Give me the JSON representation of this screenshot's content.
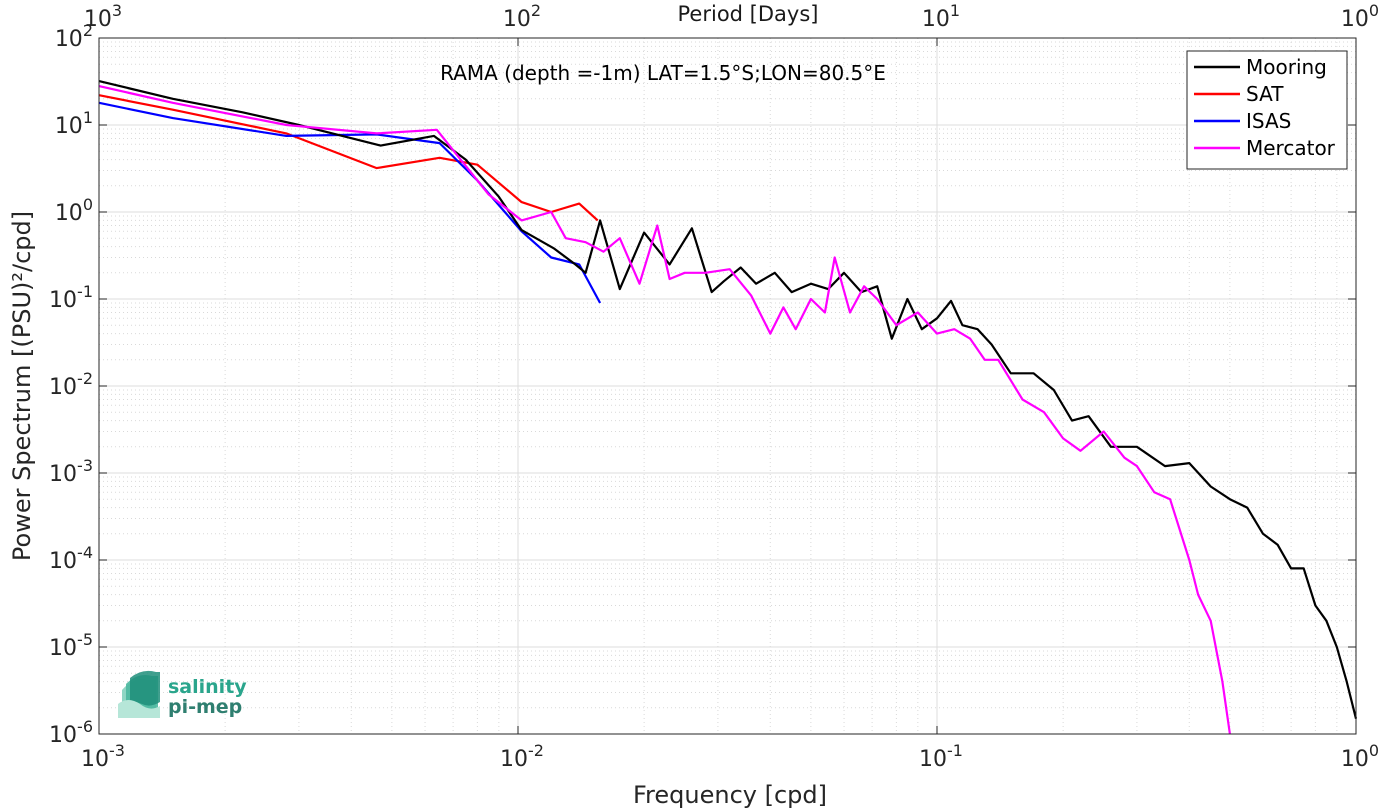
{
  "chart_data": {
    "type": "line",
    "annotation": "RAMA (depth =-1m) LAT=1.5°S;LON=80.5°E",
    "xlabel": "Frequency [cpd]",
    "ylabel": "Power Spectrum [(PSU)²/cpd]",
    "x2label": "Period [Days]",
    "xscale": "log",
    "yscale": "log",
    "xlim": [
      0.001,
      1
    ],
    "ylim": [
      1e-06,
      100
    ],
    "grid": true,
    "legend_position": "top-right",
    "xticks": [
      0.001,
      0.01,
      0.1,
      1
    ],
    "xtick_labels": [
      {
        "base": "10",
        "exp": "-3"
      },
      {
        "base": "10",
        "exp": "-2"
      },
      {
        "base": "10",
        "exp": "-1"
      },
      {
        "base": "10",
        "exp": "0"
      }
    ],
    "x2ticks": [
      1000,
      100,
      10,
      1
    ],
    "x2tick_labels": [
      {
        "base": "10",
        "exp": "3"
      },
      {
        "base": "10",
        "exp": "2"
      },
      {
        "base": "10",
        "exp": "1"
      },
      {
        "base": "10",
        "exp": "0"
      }
    ],
    "yticks": [
      1e-06,
      1e-05,
      0.0001,
      0.001,
      0.01,
      0.1,
      1,
      10,
      100
    ],
    "ytick_labels": [
      {
        "base": "10",
        "exp": "-6"
      },
      {
        "base": "10",
        "exp": "-5"
      },
      {
        "base": "10",
        "exp": "-4"
      },
      {
        "base": "10",
        "exp": "-3"
      },
      {
        "base": "10",
        "exp": "-2"
      },
      {
        "base": "10",
        "exp": "-1"
      },
      {
        "base": "10",
        "exp": "0"
      },
      {
        "base": "10",
        "exp": "1"
      },
      {
        "base": "10",
        "exp": "2"
      }
    ],
    "series": [
      {
        "name": "Mooring",
        "color": "#000000",
        "x": [
          0.001,
          0.0015,
          0.0022,
          0.003,
          0.0047,
          0.0063,
          0.0075,
          0.009,
          0.0102,
          0.0122,
          0.0137,
          0.0145,
          0.0157,
          0.0175,
          0.02,
          0.023,
          0.026,
          0.029,
          0.031,
          0.034,
          0.037,
          0.041,
          0.045,
          0.05,
          0.055,
          0.06,
          0.066,
          0.072,
          0.078,
          0.085,
          0.092,
          0.1,
          0.108,
          0.115,
          0.125,
          0.135,
          0.15,
          0.17,
          0.19,
          0.21,
          0.23,
          0.26,
          0.3,
          0.35,
          0.4,
          0.45,
          0.5,
          0.55,
          0.6,
          0.65,
          0.7,
          0.75,
          0.8,
          0.85,
          0.9,
          0.95,
          1.0
        ],
        "y": [
          32,
          20,
          14,
          10,
          5.8,
          7.5,
          4,
          1.5,
          0.62,
          0.38,
          0.25,
          0.2,
          0.8,
          0.13,
          0.58,
          0.25,
          0.65,
          0.12,
          0.16,
          0.23,
          0.15,
          0.2,
          0.12,
          0.15,
          0.13,
          0.2,
          0.12,
          0.14,
          0.035,
          0.1,
          0.045,
          0.06,
          0.095,
          0.05,
          0.045,
          0.03,
          0.014,
          0.014,
          0.009,
          0.004,
          0.0045,
          0.002,
          0.002,
          0.0012,
          0.0013,
          0.0007,
          0.0005,
          0.0004,
          0.0002,
          0.00015,
          8e-05,
          8e-05,
          3e-05,
          2e-05,
          1e-05,
          4e-06,
          1.5e-06
        ]
      },
      {
        "name": "SAT",
        "color": "#ff0000",
        "x": [
          0.001,
          0.0015,
          0.0028,
          0.0046,
          0.0065,
          0.008,
          0.0102,
          0.012,
          0.014,
          0.0155
        ],
        "y": [
          22,
          15,
          8,
          3.2,
          4.2,
          3.5,
          1.3,
          1.0,
          1.25,
          0.8
        ]
      },
      {
        "name": "ISAS",
        "color": "#0000ff",
        "x": [
          0.001,
          0.0015,
          0.0028,
          0.0046,
          0.0065,
          0.008,
          0.0102,
          0.012,
          0.014,
          0.0157
        ],
        "y": [
          18,
          12,
          7.5,
          7.8,
          6.2,
          2.3,
          0.6,
          0.3,
          0.25,
          0.09
        ]
      },
      {
        "name": "Mercator",
        "color": "#ff00ff",
        "x": [
          0.001,
          0.0015,
          0.0028,
          0.0046,
          0.0064,
          0.0085,
          0.0102,
          0.012,
          0.013,
          0.0145,
          0.016,
          0.0175,
          0.0195,
          0.0215,
          0.023,
          0.025,
          0.028,
          0.032,
          0.036,
          0.04,
          0.043,
          0.046,
          0.05,
          0.054,
          0.057,
          0.062,
          0.067,
          0.072,
          0.08,
          0.09,
          0.1,
          0.11,
          0.12,
          0.13,
          0.14,
          0.16,
          0.18,
          0.2,
          0.22,
          0.25,
          0.28,
          0.3,
          0.33,
          0.36,
          0.4,
          0.42,
          0.45,
          0.48,
          0.5
        ],
        "y": [
          28,
          18,
          10,
          8,
          8.8,
          1.6,
          0.8,
          1.0,
          0.5,
          0.45,
          0.35,
          0.5,
          0.15,
          0.7,
          0.17,
          0.2,
          0.2,
          0.22,
          0.11,
          0.04,
          0.08,
          0.045,
          0.1,
          0.07,
          0.3,
          0.07,
          0.14,
          0.1,
          0.05,
          0.07,
          0.04,
          0.045,
          0.035,
          0.02,
          0.02,
          0.007,
          0.005,
          0.0025,
          0.0018,
          0.003,
          0.0015,
          0.0012,
          0.0006,
          0.0005,
          0.0001,
          4e-05,
          2e-05,
          4e-06,
          1e-06
        ]
      }
    ]
  },
  "logo": {
    "line1": "salinity",
    "line2": "pi-mep"
  }
}
